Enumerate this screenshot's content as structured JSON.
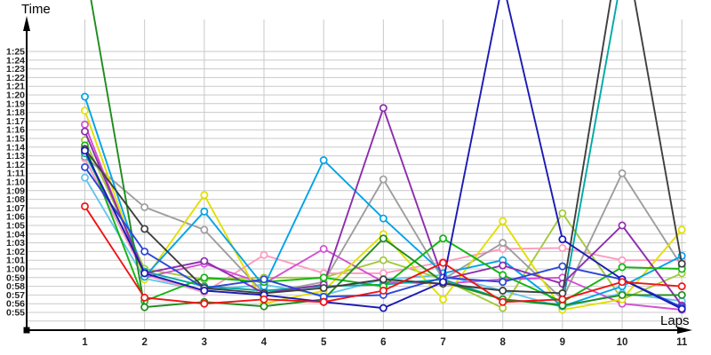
{
  "chart": {
    "y_axis_title": "Time",
    "x_axis_title": "Laps",
    "y_tick_labels": [
      "1:25",
      "1:24",
      "1:23",
      "1:22",
      "1:21",
      "1:20",
      "1:19",
      "1:18",
      "1:17",
      "1:16",
      "1:15",
      "1:14",
      "1:13",
      "1:12",
      "1:11",
      "1:10",
      "1:09",
      "1:08",
      "1:07",
      "1:06",
      "1:05",
      "1:04",
      "1:03",
      "1:02",
      "1:01",
      "1:00",
      "0:59",
      "0:58",
      "0:57",
      "0:56",
      "0:55"
    ],
    "x_tick_labels": [
      "1",
      "2",
      "3",
      "4",
      "5",
      "6",
      "7",
      "8",
      "9",
      "10",
      "11"
    ],
    "gridline_color": "#c9c9c9",
    "axis_color": "#000000",
    "tick_label_color": "#222222"
  },
  "chart_data": {
    "type": "line",
    "title": "",
    "xlabel": "Laps",
    "ylabel": "Time",
    "x": [
      1,
      2,
      3,
      4,
      5,
      6,
      7,
      8,
      9,
      10,
      11
    ],
    "y_unit": "seconds (lap time, 0:55 - 1:25 labeled; values above 1:25 run off the top of the chart)",
    "ylim_labeled": [
      "0:55",
      "1:25"
    ],
    "grid": true,
    "legend_position": "none",
    "marker": "open-circle",
    "series": [
      {
        "name": "light-blue",
        "color": "#63c6ec",
        "values": [
          70.5,
          58.9,
          57.5,
          58.2,
          57.0,
          58.8,
          59.3,
          57.5,
          55.6,
          57.2,
          56.3
        ]
      },
      {
        "name": "lime",
        "color": "#a2c93a",
        "values": [
          74.8,
          60.0,
          58.8,
          59.0,
          59.0,
          61.0,
          58.8,
          55.5,
          66.4,
          56.5,
          59.5
        ]
      },
      {
        "name": "pink",
        "color": "#fc9cbf",
        "values": [
          72.7,
          59.3,
          57.3,
          61.6,
          59.5,
          59.5,
          60.8,
          62.3,
          62.4,
          61.0,
          61.0
        ]
      },
      {
        "name": "gray",
        "color": "#9e9e9e",
        "values": [
          72.9,
          67.1,
          64.5,
          57.2,
          58.5,
          70.3,
          58.8,
          63.0,
          56.5,
          71.0,
          60.3
        ]
      },
      {
        "name": "magenta",
        "color": "#d44ed4",
        "values": [
          76.6,
          59.0,
          60.6,
          58.3,
          62.3,
          58.5,
          58.3,
          58.8,
          59.0,
          56.0,
          55.3
        ]
      },
      {
        "name": "yellow",
        "color": "#e3df00",
        "values": [
          78.2,
          58.8,
          68.5,
          56.0,
          57.5,
          64.0,
          56.5,
          65.5,
          55.3,
          56.5,
          64.5
        ]
      },
      {
        "name": "teal",
        "color": "#00aaa4",
        "values": [
          73.3,
          59.7,
          58.0,
          57.5,
          58.0,
          58.2,
          58.8,
          56.5,
          55.9,
          94.0,
          null
        ]
      },
      {
        "name": "cyan",
        "color": "#00a3e8",
        "values": [
          79.8,
          59.1,
          66.6,
          58.0,
          72.5,
          65.8,
          59.5,
          61.0,
          55.7,
          58.0,
          61.5
        ]
      },
      {
        "name": "purple",
        "color": "#8e2dad",
        "values": [
          75.8,
          59.5,
          60.9,
          57.2,
          58.2,
          78.5,
          58.8,
          60.4,
          58.3,
          65.0,
          55.8
        ]
      },
      {
        "name": "bright-green",
        "color": "#12b512",
        "values": [
          74.2,
          56.3,
          59.0,
          58.5,
          59.0,
          58.0,
          63.5,
          59.3,
          56.2,
          60.2,
          60.0
        ]
      },
      {
        "name": "forest-green",
        "color": "#1e8c1e",
        "values": [
          95.0,
          55.6,
          56.2,
          55.7,
          56.5,
          63.5,
          58.5,
          56.5,
          55.8,
          57.0,
          57.0
        ]
      },
      {
        "name": "blue",
        "color": "#2b47d9",
        "values": [
          71.7,
          62.0,
          57.8,
          58.8,
          56.8,
          57.0,
          59.0,
          58.5,
          60.3,
          58.8,
          55.6
        ]
      },
      {
        "name": "black",
        "color": "#3f3f3f",
        "values": [
          73.8,
          64.6,
          57.8,
          57.2,
          57.8,
          58.8,
          58.3,
          57.5,
          57.2,
          99.0,
          60.6
        ]
      },
      {
        "name": "navy",
        "color": "#1a1ab4",
        "values": [
          73.6,
          59.5,
          57.5,
          57.0,
          56.2,
          55.5,
          58.5,
          93.0,
          63.4,
          58.8,
          55.4
        ]
      },
      {
        "name": "red",
        "color": "#f01414",
        "values": [
          67.2,
          56.7,
          56.0,
          56.5,
          56.2,
          57.5,
          60.7,
          56.2,
          56.5,
          58.5,
          58.0
        ]
      }
    ]
  }
}
